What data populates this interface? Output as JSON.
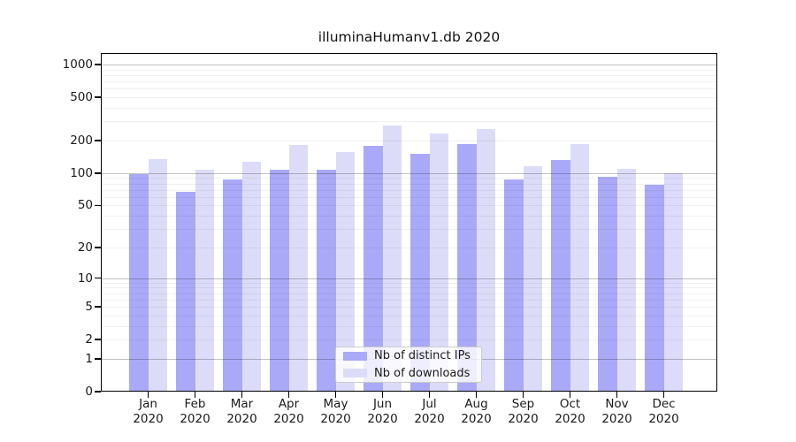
{
  "chart_data": {
    "type": "bar",
    "title": "illuminaHumanv1.db 2020",
    "categories": [
      "Jan",
      "Feb",
      "Mar",
      "Apr",
      "May",
      "Jun",
      "Jul",
      "Aug",
      "Sep",
      "Oct",
      "Nov",
      "Dec"
    ],
    "year_label": "2020",
    "series": [
      {
        "name": "Nb of distinct IPs",
        "color": "#a9a9f8",
        "values": [
          97,
          67,
          87,
          108,
          107,
          178,
          152,
          184,
          87,
          132,
          93,
          78
        ]
      },
      {
        "name": "Nb of downloads",
        "color": "#dcdcf9",
        "values": [
          135,
          107,
          127,
          181,
          157,
          277,
          233,
          256,
          117,
          187,
          110,
          100
        ]
      }
    ],
    "xlabel": "",
    "ylabel": "",
    "scale": "log1p",
    "ylim": [
      0,
      1000
    ],
    "y_ticks": [
      0,
      1,
      2,
      5,
      10,
      20,
      50,
      100,
      200,
      500,
      1000
    ],
    "grid_major": [
      1,
      10,
      100,
      1000
    ],
    "grid_minor": [
      2,
      3,
      4,
      5,
      6,
      7,
      8,
      9,
      20,
      30,
      40,
      50,
      60,
      70,
      80,
      90,
      200,
      300,
      400,
      500,
      600,
      700,
      800,
      900
    ],
    "grid": "on",
    "legend_position": "bottom-center"
  }
}
